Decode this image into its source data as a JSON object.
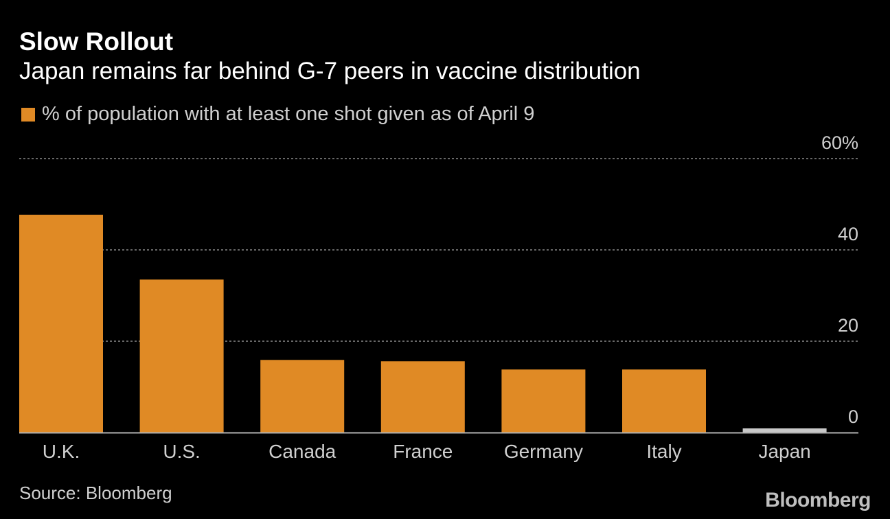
{
  "header": {
    "title": "Slow Rollout",
    "subtitle": "Japan remains far behind G-7 peers in vaccine distribution"
  },
  "legend": {
    "label": "% of population with at least one shot given as of April 9"
  },
  "colors": {
    "primary_bar": "#E08A25",
    "highlight_bar": "#C8C8C8",
    "grid": "#8A8A8A",
    "axis": "#B0B0B0",
    "tick_text": "#D0D0D0",
    "background": "#000000"
  },
  "chart_data": {
    "type": "bar",
    "title": "Slow Rollout",
    "subtitle": "Japan remains far behind G-7 peers in vaccine distribution",
    "categories": [
      "U.K.",
      "U.S.",
      "Canada",
      "France",
      "Germany",
      "Italy",
      "Japan"
    ],
    "series": [
      {
        "name": "% of population with at least one shot given as of April 9",
        "values": [
          47.7,
          33.5,
          15.9,
          15.6,
          13.8,
          13.8,
          0.9
        ]
      }
    ],
    "highlight": [
      "Japan"
    ],
    "ylim": [
      0,
      60
    ],
    "yticks": [
      0,
      20,
      40,
      60
    ],
    "ytick_labels": [
      "0",
      "20",
      "40",
      "60%"
    ],
    "xlabel": "",
    "ylabel": "",
    "grid": true,
    "y_axis_position": "right"
  },
  "footer": {
    "source": "Source: Bloomberg",
    "brand": "Bloomberg"
  }
}
